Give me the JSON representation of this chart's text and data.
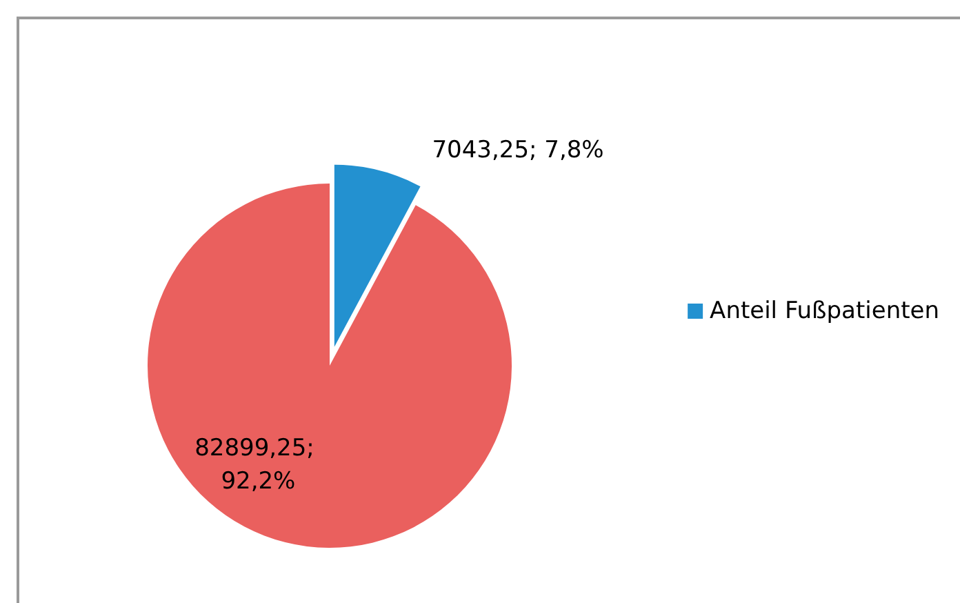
{
  "chart_data": {
    "type": "pie",
    "categories": [
      "Anteil Fußpatienten",
      null
    ],
    "values": [
      7043.25,
      82899.25
    ],
    "colors": [
      "#2391d0",
      "#ea605e"
    ],
    "value_labels": [
      "7043,25; 7,8%",
      "82899,25; 92,2%"
    ],
    "legend": "right"
  }
}
